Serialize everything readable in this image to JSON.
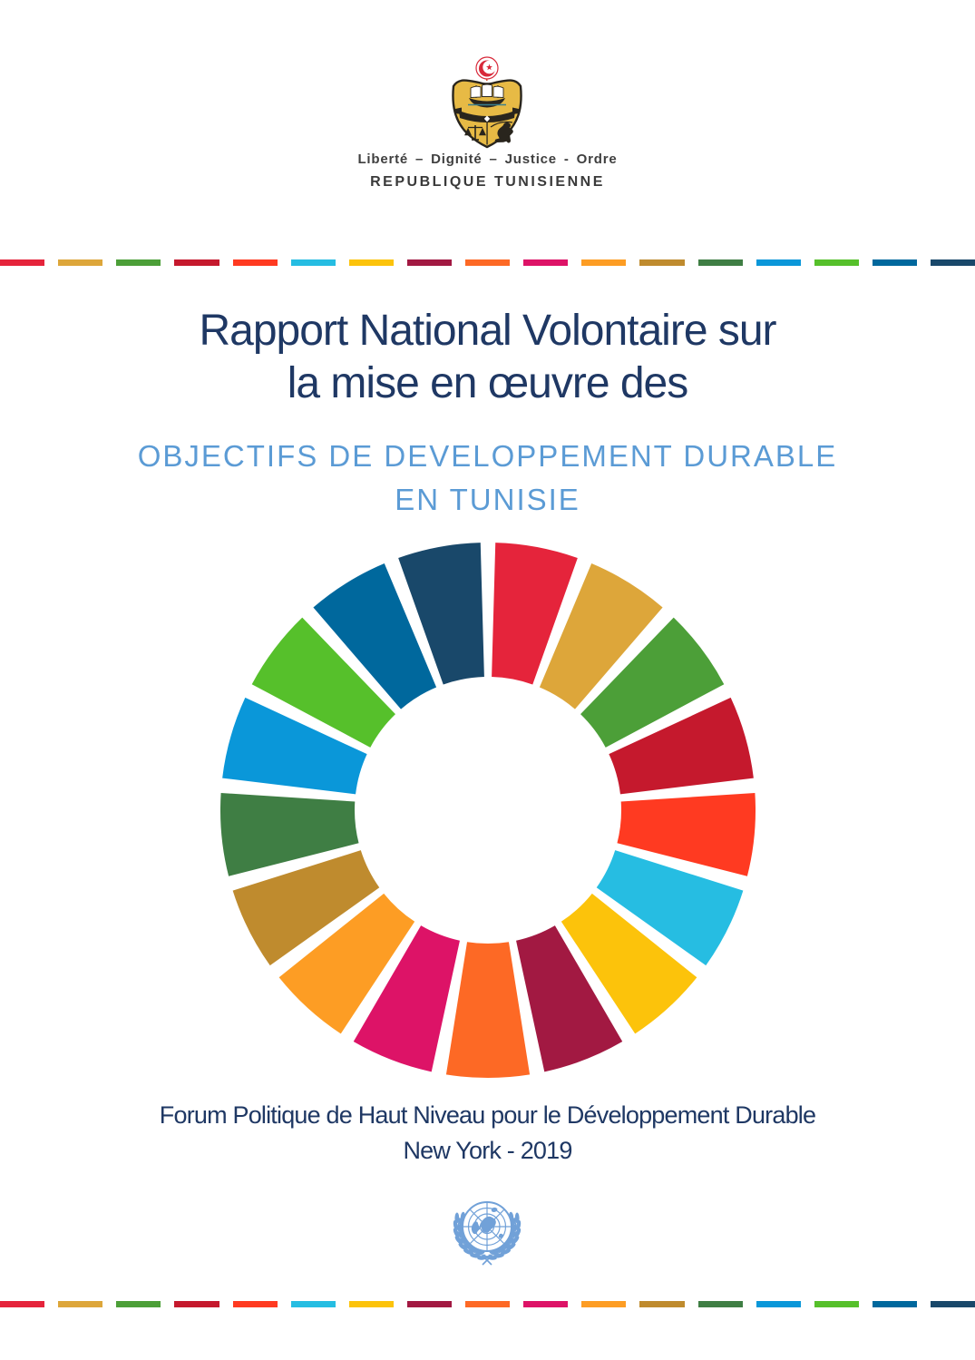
{
  "header": {
    "motto": "Liberté – Dignité – Justice - Ordre",
    "country": "REPUBLIQUE TUNISIENNE"
  },
  "title": {
    "line1": "Rapport National Volontaire sur",
    "line2": "la mise en œuvre des"
  },
  "subtitle": {
    "line1": "OBJECTIFS DE DEVELOPPEMENT DURABLE",
    "line2": "EN TUNISIE"
  },
  "footer": {
    "line1": "Forum Politique de Haut Niveau pour le Développement Durable",
    "line2": "New York - 2019"
  },
  "colors": {
    "title_navy": "#1f3864",
    "subtitle_blue": "#5b9bd5",
    "footer_navy": "#1f3864",
    "motto_gray": "#3f3f3f",
    "country_gray": "#3a3a3a",
    "un_blue": "#71a1d8",
    "shield_gold": "#e7ba45",
    "emblem_red": "#d8293a",
    "emblem_ink": "#29251d",
    "sea_teal": "#3a7f8e"
  },
  "sdg_wheel": {
    "segments": 17,
    "gap_degrees": 3.2
  },
  "sdg_colors": [
    "#e5243b",
    "#dda63a",
    "#4c9f38",
    "#c5192d",
    "#ff3a21",
    "#26bde2",
    "#fcc30b",
    "#a21942",
    "#fd6925",
    "#dd1367",
    "#fd9d24",
    "#bf8b2e",
    "#3f7e44",
    "#0a97d9",
    "#56c02b",
    "#00689d",
    "#19486a"
  ]
}
